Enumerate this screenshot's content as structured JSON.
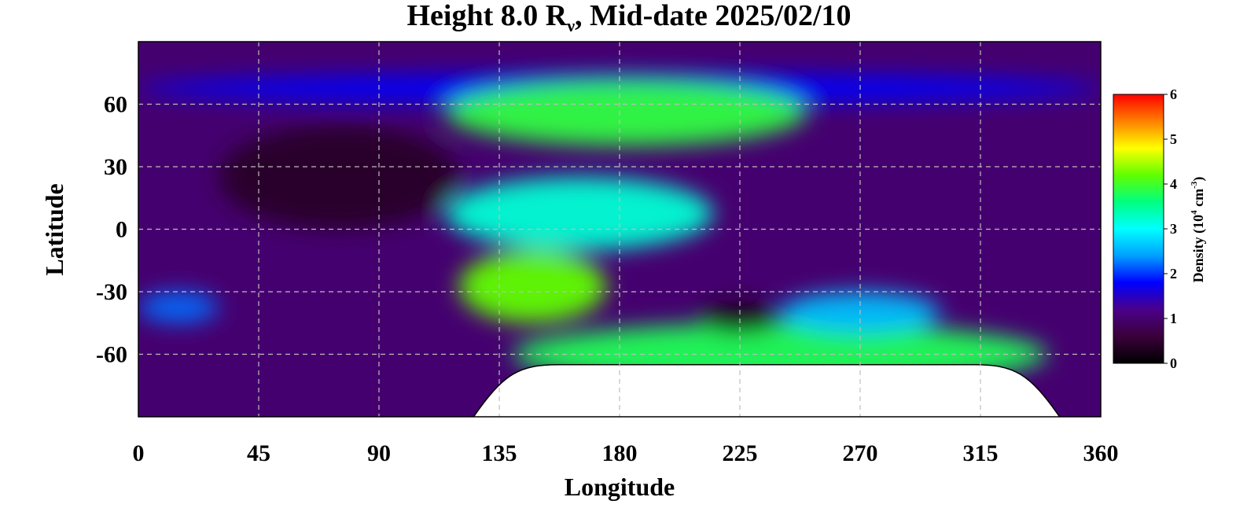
{
  "chart_data": {
    "type": "heatmap",
    "title": {
      "prefix": "Height 8.0 R",
      "sub": "ν",
      "suffix": ", Mid-date 2025/02/10"
    },
    "xlabel": "Longitude",
    "ylabel": "Latitude",
    "xlim": [
      0,
      360
    ],
    "ylim": [
      -90,
      90
    ],
    "xticks": [
      0,
      45,
      90,
      135,
      180,
      225,
      270,
      315,
      360
    ],
    "yticks": [
      60,
      30,
      0,
      -30,
      -60
    ],
    "grid": true,
    "colorbar": {
      "label_prefix": "Density (10",
      "label_sup1": "4",
      "label_mid": " cm",
      "label_sup2": "-3",
      "label_suffix": ")",
      "range": [
        0,
        6
      ],
      "ticks": [
        0,
        1,
        2,
        3,
        4,
        5,
        6
      ],
      "colors": [
        "#000000",
        "#3a003a",
        "#4b008a",
        "#0000ff",
        "#00a0ff",
        "#00ffff",
        "#00ff80",
        "#60ff00",
        "#ffff00",
        "#ff8000",
        "#ff0000"
      ]
    },
    "background_density": 1.0,
    "features": [
      {
        "name": "northern-band",
        "lon": [
          0,
          360
        ],
        "lat": [
          60,
          75
        ],
        "density": 1.8
      },
      {
        "name": "north-arc-core",
        "lon": [
          115,
          250
        ],
        "lat": [
          40,
          72
        ],
        "density": 3.9
      },
      {
        "name": "central-band",
        "lon": [
          115,
          215
        ],
        "lat": [
          -10,
          25
        ],
        "density": 3.2
      },
      {
        "name": "southwest-lobe",
        "lon": [
          120,
          175
        ],
        "lat": [
          -45,
          -10
        ],
        "density": 4.2
      },
      {
        "name": "southern-band",
        "lon": [
          140,
          340
        ],
        "lat": [
          -75,
          -45
        ],
        "density": 3.8
      },
      {
        "name": "southeast-cyan-patch",
        "lon": [
          240,
          300
        ],
        "lat": [
          -50,
          -30
        ],
        "density": 2.6
      },
      {
        "name": "west-blue-patch",
        "lon": [
          0,
          30
        ],
        "lat": [
          -45,
          -30
        ],
        "density": 2.2
      },
      {
        "name": "dark-hole",
        "lon": [
          210,
          240
        ],
        "lat": [
          -50,
          -35
        ],
        "density": 0.2
      },
      {
        "name": "north-dark-region",
        "lon": [
          30,
          120
        ],
        "lat": [
          0,
          50
        ],
        "density": 0.4
      }
    ],
    "no_data_region": {
      "lon": [
        125,
        345
      ],
      "lat": [
        -90,
        -65
      ]
    }
  }
}
